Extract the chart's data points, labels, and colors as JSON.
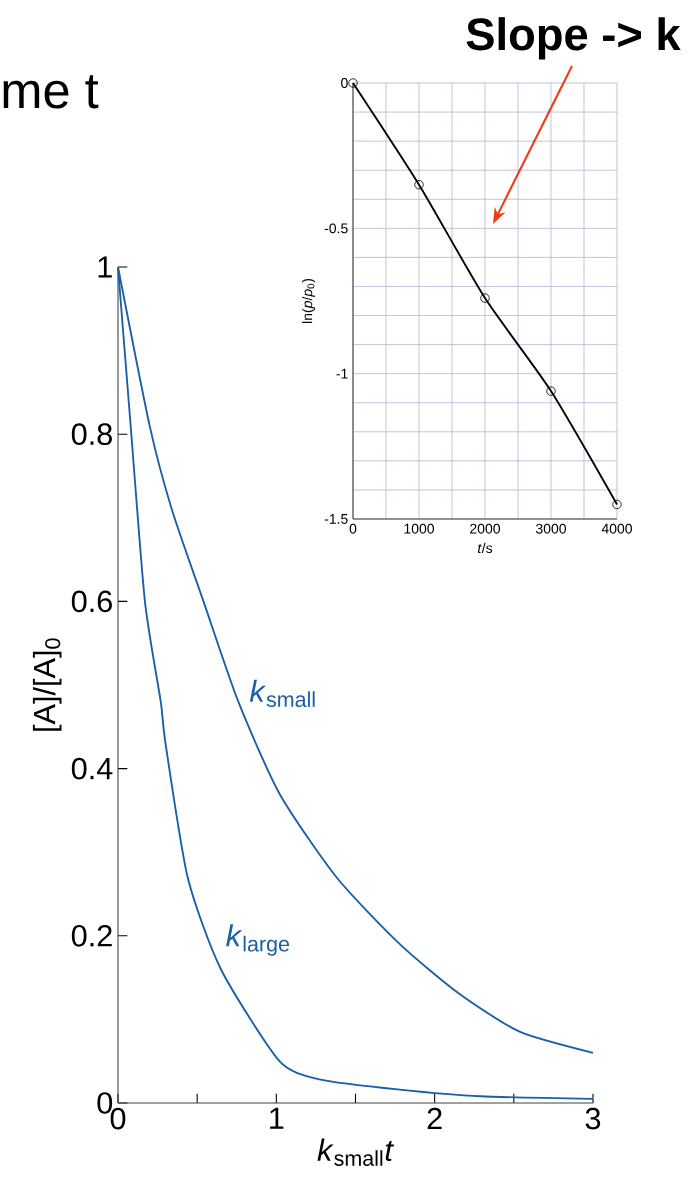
{
  "chart_data": [
    {
      "type": "line",
      "xlabel": "*k*$_{small}$*t*",
      "ylabel": "[A]/[A]$_{0}$",
      "annotations": [
        "me t"
      ],
      "xlim": [
        0,
        3
      ],
      "ylim": [
        0,
        1
      ],
      "xticks": [
        0,
        {
          "value": 0.5,
          "label": null
        },
        1,
        {
          "value": 1.5,
          "label": null
        },
        2,
        {
          "value": 2.5,
          "label": null
        },
        3
      ],
      "yticks": [
        0,
        0.2,
        0.4,
        0.6,
        0.8,
        1
      ],
      "marker": "none",
      "line_style": "solid",
      "series": [
        {
          "name": "*k*$_{small}$",
          "color": "#1a5fa8",
          "x": [
            0,
            0.2,
            0.34,
            0.54,
            0.76,
            1.02,
            1.38,
            1.78,
            2.16,
            2.54,
            3.0
          ],
          "values": [
            1,
            0.81,
            0.71,
            0.6,
            0.48,
            0.37,
            0.27,
            0.19,
            0.13,
            0.085,
            0.06
          ]
        },
        {
          "name": "*k*$_{large}$",
          "color": "#1a5fa8",
          "x": [
            0,
            0.08,
            0.17,
            0.27,
            0.3,
            0.44,
            0.65,
            1.02,
            1.28,
            1.78,
            2.29,
            3.0
          ],
          "values": [
            1,
            0.81,
            0.6,
            0.48,
            0.43,
            0.27,
            0.16,
            0.05,
            0.028,
            0.016,
            0.008,
            0.005
          ]
        }
      ]
    },
    {
      "type": "line",
      "xlabel": "*t*/s",
      "ylabel": "ln(*p*/*p*$_{0}$)",
      "annotations": [
        "Slope -> k"
      ],
      "xlim": [
        0,
        4000
      ],
      "ylim": [
        -1.5,
        0
      ],
      "grid": true,
      "xticks": [
        0,
        {
          "value": 500,
          "label": null
        },
        1000,
        {
          "value": 1500,
          "label": null
        },
        2000,
        {
          "value": 2500,
          "label": null
        },
        3000,
        {
          "value": 3500,
          "label": null
        },
        4000
      ],
      "yticks": [
        -1.5,
        {
          "value": -1.4,
          "label": null
        },
        {
          "value": -1.3,
          "label": null
        },
        {
          "value": -1.2,
          "label": null
        },
        {
          "value": -1.1,
          "label": null
        },
        -1,
        {
          "value": -0.9,
          "label": null
        },
        {
          "value": -0.8,
          "label": null
        },
        {
          "value": -0.7,
          "label": null
        },
        {
          "value": -0.6,
          "label": null
        },
        -0.5,
        {
          "value": -0.4,
          "label": null
        },
        {
          "value": -0.3,
          "label": null
        },
        {
          "value": -0.2,
          "label": null
        },
        {
          "value": -0.1,
          "label": null
        },
        0
      ],
      "marker": "circle",
      "line_style": "solid",
      "series": [
        {
          "color": "#000000",
          "x": [
            0,
            1000,
            2000,
            3000,
            4000
          ],
          "values": [
            0,
            -0.35,
            -0.74,
            -1.06,
            -1.45
          ]
        }
      ]
    }
  ]
}
